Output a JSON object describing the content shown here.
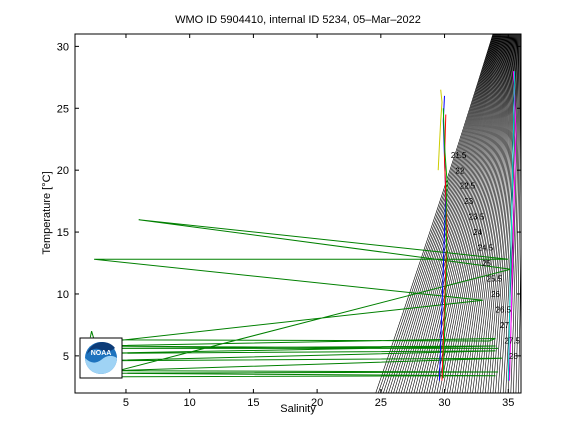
{
  "chart_data": {
    "type": "line",
    "title": "WMO ID 5904410, internal ID 5234, 05–Mar–2022",
    "xlabel": "Salinity",
    "ylabel": "Temperature [°C]",
    "xlim": [
      1,
      36
    ],
    "ylim": [
      2,
      31
    ],
    "xticks": [
      5,
      10,
      15,
      20,
      25,
      30,
      35
    ],
    "yticks": [
      5,
      10,
      15,
      20,
      25,
      30
    ],
    "grid": false,
    "logo": "NOAA",
    "isopycnal_labels": [
      "21.5",
      "22",
      "22.5",
      "23",
      "23.5",
      "24",
      "24.5",
      "25",
      "25.5",
      "26",
      "26.5",
      "27",
      "27.5",
      "28"
    ],
    "series": [
      {
        "color": "#008000",
        "x": [
          2.2,
          2.3,
          2.5,
          33.5,
          34.0,
          2.5,
          34.2,
          2.3,
          34.0,
          2.4,
          34.0,
          2.6,
          34.5,
          4.0,
          34.2,
          2.5,
          34.0,
          2.5,
          35.2,
          6.0,
          35.0,
          2.5,
          33.0,
          2.3
        ],
        "y": [
          6.5,
          7.0,
          6.3,
          6.2,
          6.4,
          5.8,
          5.6,
          5.6,
          5.8,
          5.2,
          5.4,
          4.6,
          4.8,
          3.8,
          3.7,
          3.6,
          3.4,
          3.3,
          12.0,
          16.0,
          12.8,
          12.8,
          9.5,
          6.0
        ]
      },
      {
        "color": "#0000ff",
        "x": [
          29.6,
          29.7,
          29.8,
          29.9,
          30.0,
          30.1,
          30.0,
          29.9,
          30.0
        ],
        "y": [
          3.0,
          6.0,
          9.0,
          12.0,
          15.0,
          18.0,
          21.0,
          24.0,
          26.0
        ]
      },
      {
        "color": "#ff0000",
        "x": [
          29.8,
          29.9,
          30.0,
          30.1,
          30.2,
          30.1,
          30.0,
          30.1
        ],
        "y": [
          3.0,
          6.0,
          9.0,
          12.0,
          15.0,
          18.0,
          21.0,
          24.5
        ]
      },
      {
        "color": "#00aa00",
        "x": [
          29.9,
          30.0,
          30.1,
          30.2,
          30.1,
          30.2,
          30.0,
          29.9
        ],
        "y": [
          3.2,
          6.5,
          10.0,
          13.0,
          16.0,
          19.0,
          22.0,
          25.0
        ]
      },
      {
        "color": "#ff00ff",
        "x": [
          35.1,
          35.2,
          35.3,
          35.4,
          35.5,
          35.6,
          35.5,
          35.4
        ],
        "y": [
          3.0,
          7.0,
          11.0,
          15.0,
          19.0,
          23.0,
          26.0,
          28.0
        ]
      },
      {
        "color": "#00cccc",
        "x": [
          35.0,
          35.1,
          35.2,
          35.3,
          35.4,
          35.5
        ],
        "y": [
          3.0,
          8.0,
          13.0,
          18.0,
          23.0,
          28.0
        ]
      },
      {
        "color": "#cccc00",
        "x": [
          29.5,
          29.6,
          29.7,
          29.8,
          29.7
        ],
        "y": [
          20.0,
          22.0,
          24.0,
          25.5,
          26.5
        ]
      }
    ]
  }
}
